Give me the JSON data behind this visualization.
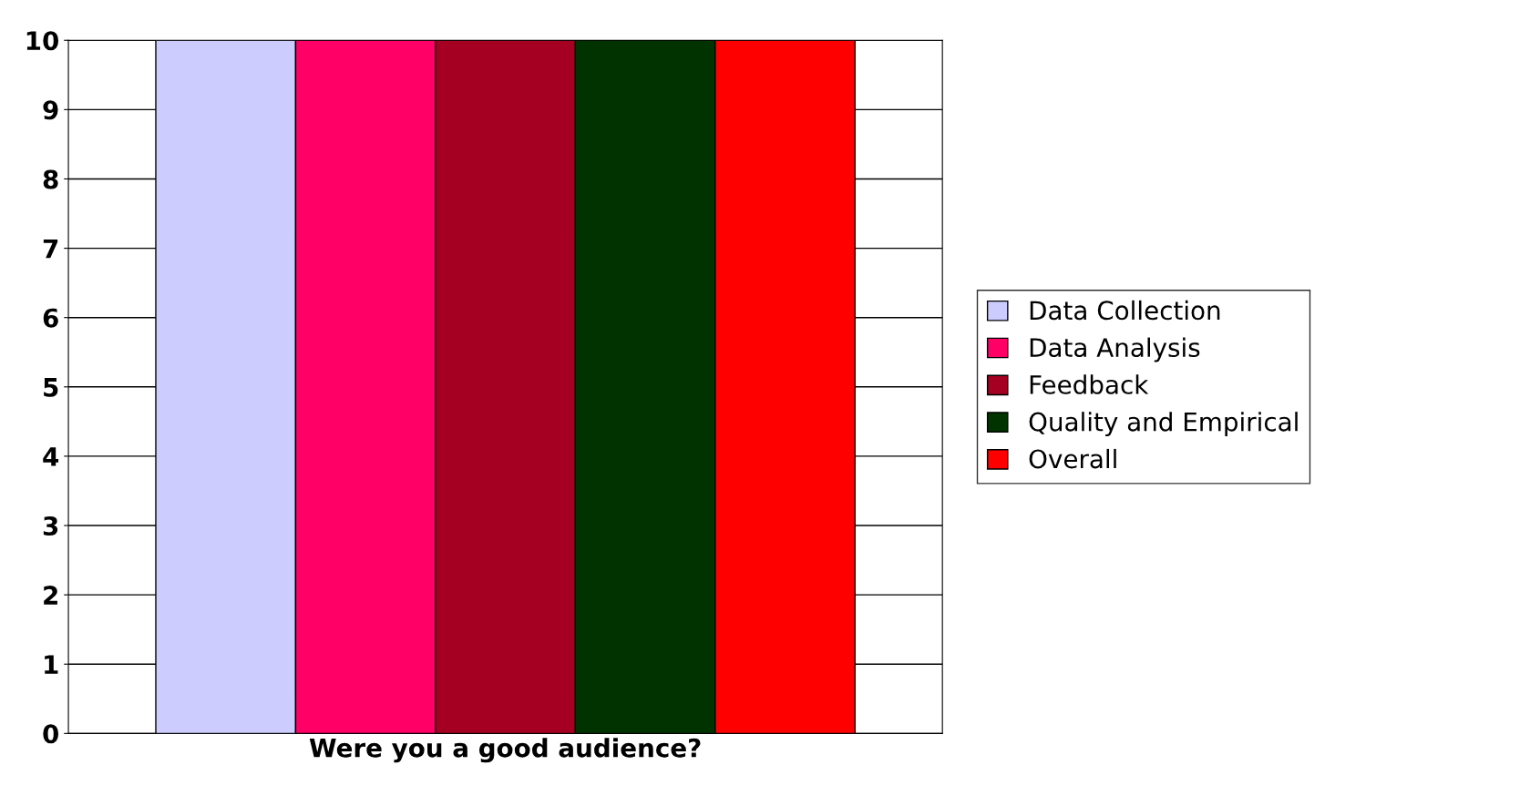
{
  "chart_data": {
    "type": "bar",
    "categories": [
      "Were you a good audience?"
    ],
    "series": [
      {
        "name": "Data Collection",
        "color": "#ccccff",
        "values": [
          10
        ]
      },
      {
        "name": "Data Analysis",
        "color": "#ff0066",
        "values": [
          10
        ]
      },
      {
        "name": "Feedback",
        "color": "#a50021",
        "values": [
          10
        ]
      },
      {
        "name": "Quality and Empirical",
        "color": "#003300",
        "values": [
          10
        ]
      },
      {
        "name": "Overall",
        "color": "#ff0000",
        "values": [
          10
        ]
      }
    ],
    "ylim": [
      0,
      10
    ],
    "yticks": [
      0,
      1,
      2,
      3,
      4,
      5,
      6,
      7,
      8,
      9,
      10
    ],
    "grid": "y",
    "legend": "right"
  }
}
